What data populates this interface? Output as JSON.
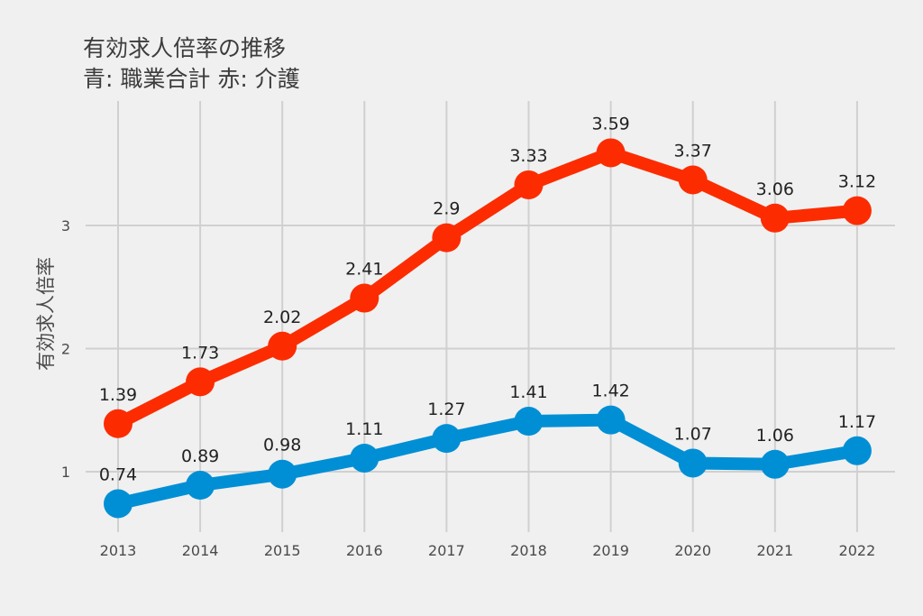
{
  "chart_data": {
    "type": "line",
    "title": "有効求人倍率の推移",
    "subtitle": "青: 職業合計 赤: 介護",
    "xlabel": "",
    "ylabel": "有効求人倍率",
    "x": [
      "2013",
      "2014",
      "2015",
      "2016",
      "2017",
      "2018",
      "2019",
      "2020",
      "2021",
      "2022"
    ],
    "yticks": [
      "1",
      "2",
      "3"
    ],
    "ylim": [
      0.5,
      3.9
    ],
    "grid": true,
    "legend": "none",
    "series": [
      {
        "name": "職業合計",
        "color": "#008fd5",
        "values": [
          0.74,
          0.89,
          0.98,
          1.11,
          1.27,
          1.41,
          1.42,
          1.07,
          1.06,
          1.17
        ],
        "labels": [
          "0.74",
          "0.89",
          "0.98",
          "1.11",
          "1.27",
          "1.41",
          "1.42",
          "1.07",
          "1.06",
          "1.17"
        ]
      },
      {
        "name": "介護",
        "color": "#fc2c00",
        "values": [
          1.39,
          1.73,
          2.02,
          2.41,
          2.9,
          3.33,
          3.59,
          3.37,
          3.06,
          3.12
        ],
        "labels": [
          "1.39",
          "1.73",
          "2.02",
          "2.41",
          "2.9",
          "3.33",
          "3.59",
          "3.37",
          "3.06",
          "3.12"
        ]
      }
    ]
  }
}
